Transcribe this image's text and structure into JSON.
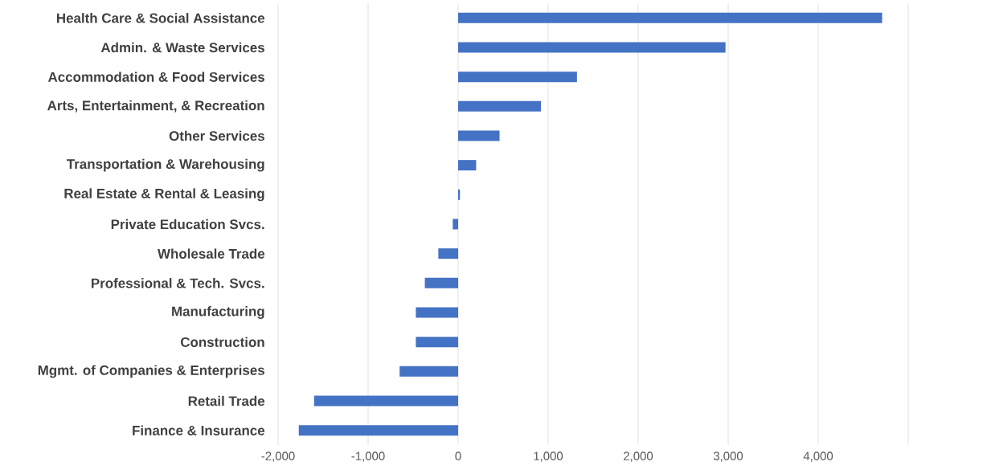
{
  "chart_data": {
    "type": "bar",
    "orientation": "horizontal",
    "categories": [
      "Health Care & Social Assistance",
      "Admin. & Waste Services",
      "Accommodation & Food Services",
      "Arts, Entertainment, & Recreation",
      "Other Services",
      "Transportation & Warehousing",
      "Real Estate & Rental & Leasing",
      "Private Education Svcs.",
      "Wholesale Trade",
      "Professional & Tech. Svcs.",
      "Manufacturing",
      "Construction",
      "Mgmt. of Companies & Enterprises",
      "Retail Trade",
      "Finance & Insurance"
    ],
    "values": [
      4710,
      2970,
      1320,
      920,
      460,
      200,
      20,
      -60,
      -220,
      -370,
      -470,
      -470,
      -650,
      -1600,
      -1770
    ],
    "color": "#4472c4",
    "xlim": [
      -2000,
      5000
    ],
    "xticks": [
      {
        "value": -2000,
        "label": "-2,000"
      },
      {
        "value": -1000,
        "label": "-1,000"
      },
      0,
      {
        "value": 1000,
        "label": "1,000"
      },
      {
        "value": 2000,
        "label": "2,000"
      },
      {
        "value": 3000,
        "label": "3,000"
      },
      {
        "value": 4000,
        "label": "4,000"
      },
      {
        "value": 5000,
        "label": null
      }
    ],
    "grid": "x"
  }
}
